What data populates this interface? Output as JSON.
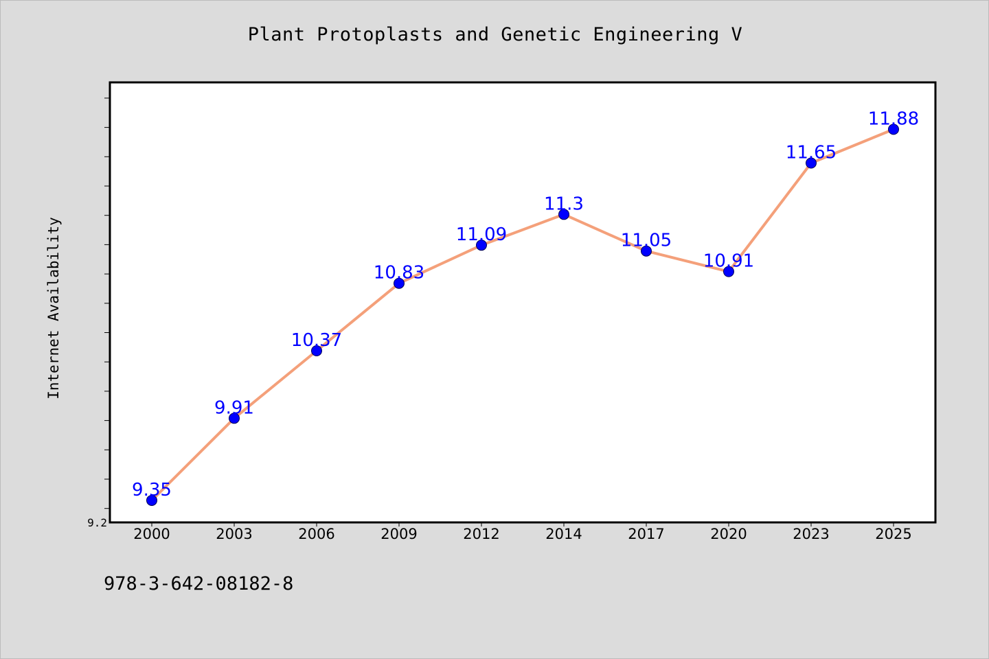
{
  "page": {
    "title": "Plant Protoplasts and Genetic Engineering V",
    "footer": "978-3-642-08182-8"
  },
  "colors": {
    "background": "#dcdcdc",
    "plot_background": "#ffffff",
    "line": "#f4a07a",
    "marker": "#0000ff",
    "data_label": "#0000ff"
  },
  "chart_data": {
    "type": "line",
    "title": "Plant Protoplasts and Genetic Engineering V",
    "xlabel": "",
    "ylabel": "Internet Availability",
    "categories": [
      "2000",
      "2003",
      "2006",
      "2009",
      "2012",
      "2014",
      "2017",
      "2020",
      "2023",
      "2025"
    ],
    "series": [
      {
        "values": [
          9.35,
          9.91,
          10.37,
          10.83,
          11.09,
          11.3,
          11.05,
          10.91,
          11.65,
          11.88
        ],
        "labels": [
          "9.35",
          "9.91",
          "10.37",
          "10.83",
          "11.09",
          "11.3",
          "11.05",
          "10.91",
          "11.65",
          "11.88"
        ]
      }
    ],
    "ylim": [
      9.2,
      12.2
    ],
    "y_tick_labels": [
      "9.2"
    ],
    "grid": false,
    "legend": "none"
  }
}
